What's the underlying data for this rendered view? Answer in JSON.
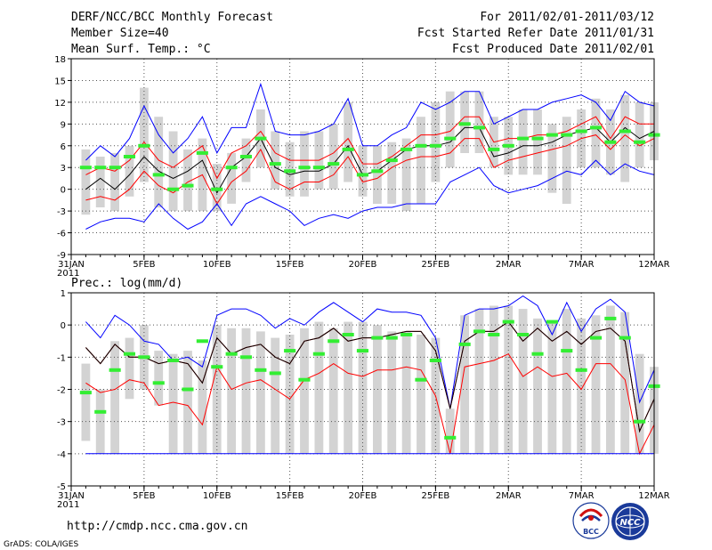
{
  "header": {
    "title": "DERF/NCC/BCC Monthly Forecast",
    "member_size": "Member Size=40",
    "variable_top": "Mean Surf. Temp.: °C",
    "period": "For 2011/02/01-2011/03/12",
    "fcst_started": "Fcst Started Refer Date 2011/01/31",
    "fcst_produced": "Fcst Produced Date 2011/02/01"
  },
  "footer": {
    "url": "http://cmdp.ncc.cma.gov.cn",
    "grads_credit": "GrADS: COLA/IGES",
    "logo_bcc_text": "BCC",
    "logo_ncc_text": "NCC"
  },
  "colors": {
    "max_line": "#0000ff",
    "quartile_lines": "#ff0000",
    "median_line": "#000000",
    "box": "#d3d3d3",
    "mean_marker": "#33ee33",
    "grid": "#555555"
  },
  "chart_data": [
    {
      "type": "line",
      "title": "Mean Surf. Temp.: °C",
      "x_tick_labels": [
        "31JAN",
        "5FEB",
        "10FEB",
        "15FEB",
        "20FEB",
        "25FEB",
        "2MAR",
        "7MAR",
        "12MAR"
      ],
      "x_tick_days": [
        0,
        5,
        10,
        15,
        20,
        25,
        30,
        35,
        40
      ],
      "x_year_label": "2011",
      "ylim": [
        -9,
        18
      ],
      "y_ticks": [
        -9,
        -6,
        -3,
        0,
        3,
        6,
        9,
        12,
        15,
        18
      ],
      "y_tick_labels": [
        "-9",
        "-6",
        "-3",
        "0",
        "3",
        "6",
        "9",
        "12",
        "15",
        "18"
      ],
      "days": [
        1,
        2,
        3,
        4,
        5,
        6,
        7,
        8,
        9,
        10,
        11,
        12,
        13,
        14,
        15,
        16,
        17,
        18,
        19,
        20,
        21,
        22,
        23,
        24,
        25,
        26,
        27,
        28,
        29,
        30,
        31,
        32,
        33,
        34,
        35,
        36,
        37,
        38,
        39,
        40
      ],
      "boxes": [
        [
          -3.5,
          5.5
        ],
        [
          -2.5,
          4.5
        ],
        [
          -3,
          5
        ],
        [
          -1,
          6
        ],
        [
          1,
          14
        ],
        [
          -2.5,
          10
        ],
        [
          -3,
          8
        ],
        [
          -3,
          5.5
        ],
        [
          -3,
          7
        ],
        [
          -3,
          3.5
        ],
        [
          -2,
          5
        ],
        [
          1,
          7
        ],
        [
          3,
          11
        ],
        [
          0,
          8
        ],
        [
          -1,
          6.5
        ],
        [
          -1,
          8
        ],
        [
          0,
          8
        ],
        [
          0,
          9
        ],
        [
          1,
          12
        ],
        [
          -1,
          6
        ],
        [
          -2,
          6
        ],
        [
          -2,
          6.5
        ],
        [
          -3,
          7
        ],
        [
          -2,
          10
        ],
        [
          1,
          12
        ],
        [
          3,
          13.5
        ],
        [
          5,
          13.5
        ],
        [
          5,
          13.5
        ],
        [
          3,
          10
        ],
        [
          2,
          10
        ],
        [
          2,
          11
        ],
        [
          2,
          11
        ],
        [
          -0.5,
          9
        ],
        [
          -2,
          10
        ],
        [
          3,
          11
        ],
        [
          3,
          12.5
        ],
        [
          2,
          11
        ],
        [
          1,
          13
        ],
        [
          3,
          12
        ],
        [
          4,
          12
        ]
      ],
      "series": [
        {
          "name": "max",
          "color": "#0000ff",
          "values": [
            4,
            6,
            4.5,
            7,
            11.5,
            7.5,
            5,
            7,
            10,
            5,
            8.5,
            8.5,
            14.5,
            8,
            7.5,
            7.5,
            8,
            9,
            12.5,
            6,
            6,
            7.5,
            8.5,
            12,
            11,
            12,
            13.5,
            13.5,
            9,
            10,
            11,
            11,
            12,
            12.5,
            13,
            12,
            9.5,
            13.5,
            12,
            11.5
          ]
        },
        {
          "name": "upper_quartile",
          "color": "#ff0000",
          "values": [
            2,
            3,
            2.5,
            4,
            6.5,
            4,
            3,
            4.5,
            6,
            1.5,
            5,
            6,
            8,
            5,
            4,
            4,
            4,
            5,
            7,
            3.5,
            3.5,
            4.5,
            6,
            7.5,
            7.5,
            8,
            10,
            10,
            6.5,
            7,
            7,
            7.5,
            7.5,
            8,
            9,
            10,
            7,
            10,
            9,
            9
          ]
        },
        {
          "name": "median",
          "color": "#000000",
          "values": [
            0,
            1.5,
            0,
            2,
            4.5,
            2.5,
            1.5,
            2.5,
            4,
            -0.5,
            3,
            4.5,
            7,
            3,
            2,
            2.5,
            2.5,
            3.5,
            6,
            2,
            2.5,
            4,
            5.5,
            6,
            6,
            6.5,
            8.5,
            8.5,
            4.5,
            5,
            6,
            6,
            6.5,
            7.5,
            8,
            8.5,
            6.5,
            8.5,
            7,
            8
          ]
        },
        {
          "name": "lower_quartile",
          "color": "#ff0000",
          "values": [
            -1.5,
            -1,
            -1.5,
            0,
            2.5,
            0.5,
            -0.5,
            1,
            2,
            -2,
            1,
            2.5,
            5.5,
            1,
            0,
            1,
            1,
            2,
            4.5,
            1,
            1.5,
            3,
            4,
            4.5,
            4.5,
            5,
            7,
            7,
            3,
            4,
            4.5,
            5,
            5.5,
            6,
            7,
            7.5,
            5.5,
            7.5,
            6,
            7
          ]
        },
        {
          "name": "min",
          "color": "#0000ff",
          "values": [
            -5.5,
            -4.5,
            -4,
            -4,
            -4.5,
            -2,
            -4,
            -5.5,
            -4.5,
            -2,
            -5,
            -2,
            -1,
            -2,
            -3,
            -5,
            -4,
            -3.5,
            -4,
            -3,
            -2.5,
            -2.5,
            -2,
            -2,
            -2,
            1,
            2,
            3,
            0.5,
            -0.5,
            0,
            0.5,
            1.5,
            2.5,
            2,
            4,
            2,
            3.5,
            2.5,
            2
          ]
        },
        {
          "name": "ensemble_mean",
          "color": "#33ee33",
          "values": [
            3,
            3,
            3,
            4.5,
            6,
            2,
            0,
            0.5,
            5,
            0,
            3,
            4.5,
            7,
            3.5,
            2.5,
            3,
            3,
            3.5,
            5.5,
            2,
            2.5,
            4,
            5.5,
            6,
            6,
            7,
            9,
            8.5,
            5.5,
            6,
            7,
            7,
            7.5,
            7.5,
            8,
            8.5,
            6.5,
            8,
            6.5,
            7.5
          ]
        }
      ]
    },
    {
      "type": "line",
      "title": "Prec.: log(mm/d)",
      "x_tick_labels": [
        "31JAN",
        "5FEB",
        "10FEB",
        "15FEB",
        "20FEB",
        "25FEB",
        "2MAR",
        "7MAR",
        "12MAR"
      ],
      "x_tick_days": [
        0,
        5,
        10,
        15,
        20,
        25,
        30,
        35,
        40
      ],
      "x_year_label": "2011",
      "ylim": [
        -5,
        1
      ],
      "y_ticks": [
        -5,
        -4,
        -3,
        -2,
        -1,
        0,
        1
      ],
      "y_tick_labels": [
        "-5",
        "-4",
        "-3",
        "-2",
        "-1",
        "0",
        "1"
      ],
      "days": [
        1,
        2,
        3,
        4,
        5,
        6,
        7,
        8,
        9,
        10,
        11,
        12,
        13,
        14,
        15,
        16,
        17,
        18,
        19,
        20,
        21,
        22,
        23,
        24,
        25,
        26,
        27,
        28,
        29,
        30,
        31,
        32,
        33,
        34,
        35,
        36,
        37,
        38,
        39,
        40
      ],
      "boxes": [
        [
          -3.6,
          -1.2
        ],
        [
          -4,
          -2
        ],
        [
          -4,
          -0.5
        ],
        [
          -2.3,
          -0.4
        ],
        [
          -2,
          0
        ],
        [
          -2.5,
          -0.8
        ],
        [
          -4,
          -0.9
        ],
        [
          -4,
          -0.8
        ],
        [
          -4,
          -1.1
        ],
        [
          -4,
          0
        ],
        [
          -4,
          -0.1
        ],
        [
          -4,
          -0.1
        ],
        [
          -4,
          -0.2
        ],
        [
          -4,
          -0.4
        ],
        [
          -4,
          -0.3
        ],
        [
          -4,
          -0.1
        ],
        [
          -4,
          0.1
        ],
        [
          -4,
          -0.1
        ],
        [
          -4,
          0.1
        ],
        [
          -4,
          0.1
        ],
        [
          -4,
          0
        ],
        [
          -4,
          -0.2
        ],
        [
          -4,
          -0.2
        ],
        [
          -4,
          -0.3
        ],
        [
          -4,
          -0.4
        ],
        [
          -4,
          -2.6
        ],
        [
          -4,
          0.3
        ],
        [
          -4,
          0.5
        ],
        [
          -4,
          0.6
        ],
        [
          -4,
          0.6
        ],
        [
          -4,
          0.5
        ],
        [
          -4,
          0.2
        ],
        [
          -4,
          0.1
        ],
        [
          -4,
          0.5
        ],
        [
          -4,
          0.2
        ],
        [
          -4,
          0.3
        ],
        [
          -4,
          0.6
        ],
        [
          -4,
          0.4
        ],
        [
          -4,
          -0.9
        ],
        [
          -4,
          -1.3
        ]
      ],
      "series": [
        {
          "name": "max",
          "color": "#0000ff",
          "values": [
            0.1,
            -0.4,
            0.3,
            0,
            -0.5,
            -0.6,
            -1.1,
            -1,
            -1.3,
            0.3,
            0.5,
            0.5,
            0.3,
            -0.1,
            0.2,
            0,
            0.4,
            0.7,
            0.4,
            0.1,
            0.5,
            0.4,
            0.4,
            0.3,
            -0.4,
            -2.6,
            0.3,
            0.5,
            0.5,
            0.6,
            0.9,
            0.6,
            -0.3,
            0.7,
            -0.2,
            0.5,
            0.8,
            0.4,
            -2.4,
            -1.4
          ]
        },
        {
          "name": "upper_quartile",
          "color": "#ff0000",
          "values": [
            -0.7,
            -1.2,
            -0.6,
            -1,
            -1,
            -1.2,
            -1.1,
            -1.2,
            -1.8,
            -0.4,
            -0.9,
            -0.7,
            -0.6,
            -1,
            -1.2,
            -0.5,
            -0.4,
            -0.1,
            -0.5,
            -0.4,
            -0.4,
            -0.3,
            -0.2,
            -0.2,
            -0.8,
            -2.6,
            -0.5,
            -0.2,
            -0.2,
            0.1,
            -0.5,
            -0.1,
            -0.5,
            -0.2,
            -0.6,
            -0.2,
            -0.1,
            -0.5,
            -3.3,
            -2.3
          ]
        },
        {
          "name": "median",
          "color": "#000000",
          "values": [
            -0.7,
            -1.2,
            -0.6,
            -1,
            -1,
            -1.2,
            -1.1,
            -1.2,
            -1.8,
            -0.4,
            -0.9,
            -0.7,
            -0.6,
            -1,
            -1.2,
            -0.5,
            -0.4,
            -0.1,
            -0.5,
            -0.4,
            -0.4,
            -0.3,
            -0.2,
            -0.2,
            -0.8,
            -2.6,
            -0.5,
            -0.2,
            -0.2,
            0.1,
            -0.5,
            -0.1,
            -0.5,
            -0.2,
            -0.6,
            -0.2,
            -0.1,
            -0.5,
            -3.3,
            -2.3
          ]
        },
        {
          "name": "lower_quartile",
          "color": "#ff0000",
          "values": [
            -1.8,
            -2.1,
            -2,
            -1.7,
            -1.8,
            -2.5,
            -2.4,
            -2.5,
            -3.1,
            -1.3,
            -2,
            -1.8,
            -1.7,
            -2,
            -2.3,
            -1.7,
            -1.5,
            -1.2,
            -1.5,
            -1.6,
            -1.4,
            -1.4,
            -1.3,
            -1.4,
            -2.2,
            -4,
            -1.3,
            -1.2,
            -1.1,
            -0.9,
            -1.6,
            -1.3,
            -1.6,
            -1.5,
            -2,
            -1.2,
            -1.2,
            -1.7,
            -4,
            -3.1
          ]
        },
        {
          "name": "min",
          "color": "#0000ff",
          "values": [
            -4,
            -4,
            -4,
            -4,
            -4,
            -4,
            -4,
            -4,
            -4,
            -4,
            -4,
            -4,
            -4,
            -4,
            -4,
            -4,
            -4,
            -4,
            -4,
            -4,
            -4,
            -4,
            -4,
            -4,
            -4,
            -4,
            -4,
            -4,
            -4,
            -4,
            -4,
            -4,
            -4,
            -4,
            -4,
            -4,
            -4,
            -4,
            -4,
            -4
          ]
        },
        {
          "name": "ensemble_mean",
          "color": "#33ee33",
          "values": [
            -2.1,
            -2.7,
            -1.4,
            -0.9,
            -1,
            -1.8,
            -1.1,
            -2,
            -0.5,
            -1.3,
            -0.9,
            -1,
            -1.4,
            -1.5,
            -0.8,
            -1.7,
            -0.9,
            -0.5,
            -0.3,
            -0.8,
            -0.4,
            -0.4,
            -0.3,
            -1.7,
            -1.1,
            -3.5,
            -0.6,
            -0.2,
            -0.3,
            0.1,
            -0.3,
            -0.9,
            0.1,
            -0.8,
            -1.4,
            -0.4,
            0.2,
            -0.4,
            -3,
            -1.9
          ]
        }
      ]
    }
  ]
}
